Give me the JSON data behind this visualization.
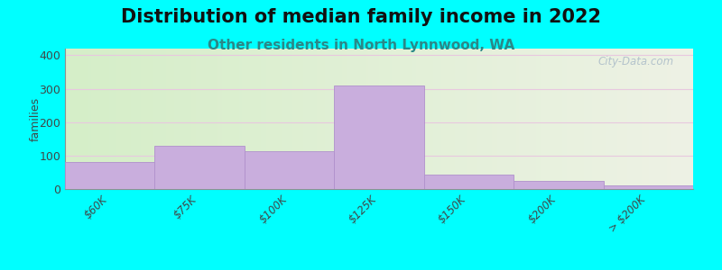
{
  "title": "Distribution of median family income in 2022",
  "subtitle": "Other residents in North Lynnwood, WA",
  "categories": [
    "$60K",
    "$75K",
    "$100K",
    "$125K",
    "$150K",
    "$200K",
    "> $200K"
  ],
  "values": [
    82,
    128,
    112,
    310,
    43,
    24,
    12
  ],
  "bar_color": "#c9aedd",
  "bar_edge_color": "#b090cc",
  "ylabel": "families",
  "ylim": [
    0,
    420
  ],
  "yticks": [
    0,
    100,
    200,
    300,
    400
  ],
  "bg_outer": "#00ffff",
  "bg_left": "#d5eec8",
  "bg_right": "#eef2e5",
  "grid_color": "#e8c8df",
  "title_fontsize": 15,
  "subtitle_fontsize": 11,
  "watermark": "City-Data.com"
}
